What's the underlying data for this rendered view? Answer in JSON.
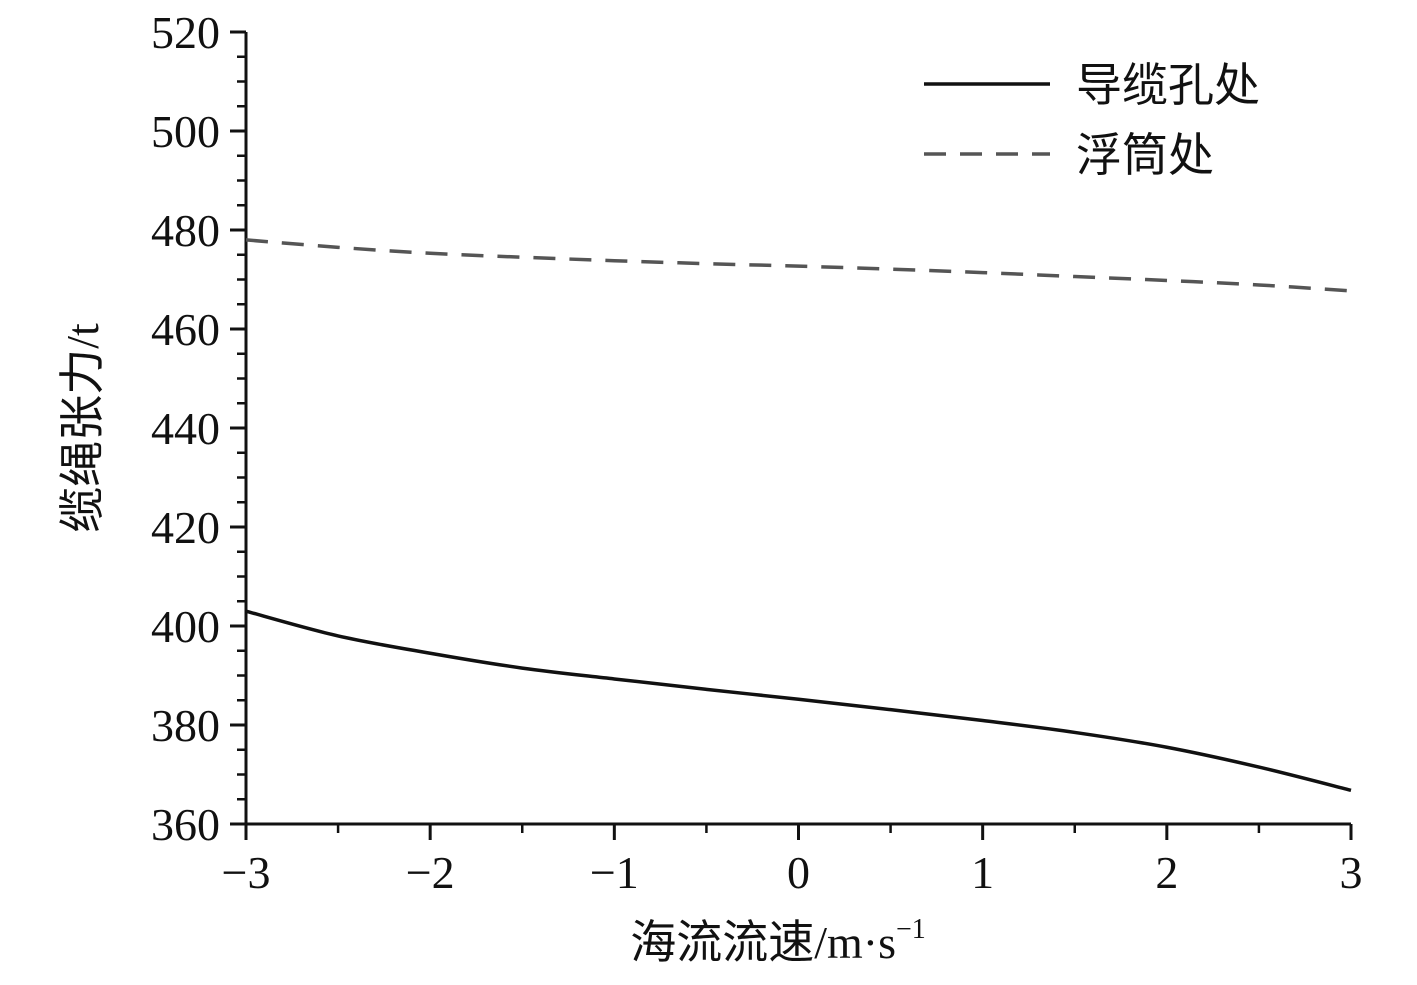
{
  "chart_data": {
    "type": "line",
    "title": "",
    "xlabel": "海流流速/m·s",
    "xlabel_superscript": "−1",
    "ylabel": "缆绳张力/t",
    "xlim": [
      -3,
      3
    ],
    "ylim": [
      360,
      520
    ],
    "xticks": [
      -3,
      -2,
      -1,
      0,
      1,
      2,
      3
    ],
    "xtick_labels": [
      "−3",
      "−2",
      "−1",
      "0",
      "1",
      "2",
      "3"
    ],
    "yticks": [
      360,
      380,
      400,
      420,
      440,
      460,
      480,
      500,
      520
    ],
    "ytick_labels": [
      "360",
      "380",
      "400",
      "420",
      "440",
      "460",
      "480",
      "500",
      "520"
    ],
    "grid": false,
    "legend_position": "top-right",
    "series": [
      {
        "name": "导缆孔处",
        "style": "solid",
        "color": "#111111",
        "x": [
          -3,
          -2.5,
          -2,
          -1.5,
          -1,
          -0.5,
          0,
          0.5,
          1,
          1.5,
          2,
          2.5,
          3
        ],
        "y": [
          403,
          398,
          394.5,
          391.5,
          389.3,
          387.2,
          385.2,
          383.1,
          380.9,
          378.5,
          375.5,
          371.5,
          366.8
        ]
      },
      {
        "name": "浮筒处",
        "style": "dashed",
        "color": "#555555",
        "x": [
          -3,
          -2.5,
          -2,
          -1.5,
          -1,
          -0.5,
          0,
          0.5,
          1,
          1.5,
          2,
          2.5,
          3
        ],
        "y": [
          478,
          476.5,
          475.3,
          474.5,
          473.8,
          473.2,
          472.7,
          472.1,
          471.4,
          470.6,
          469.8,
          468.9,
          467.7
        ]
      }
    ]
  }
}
